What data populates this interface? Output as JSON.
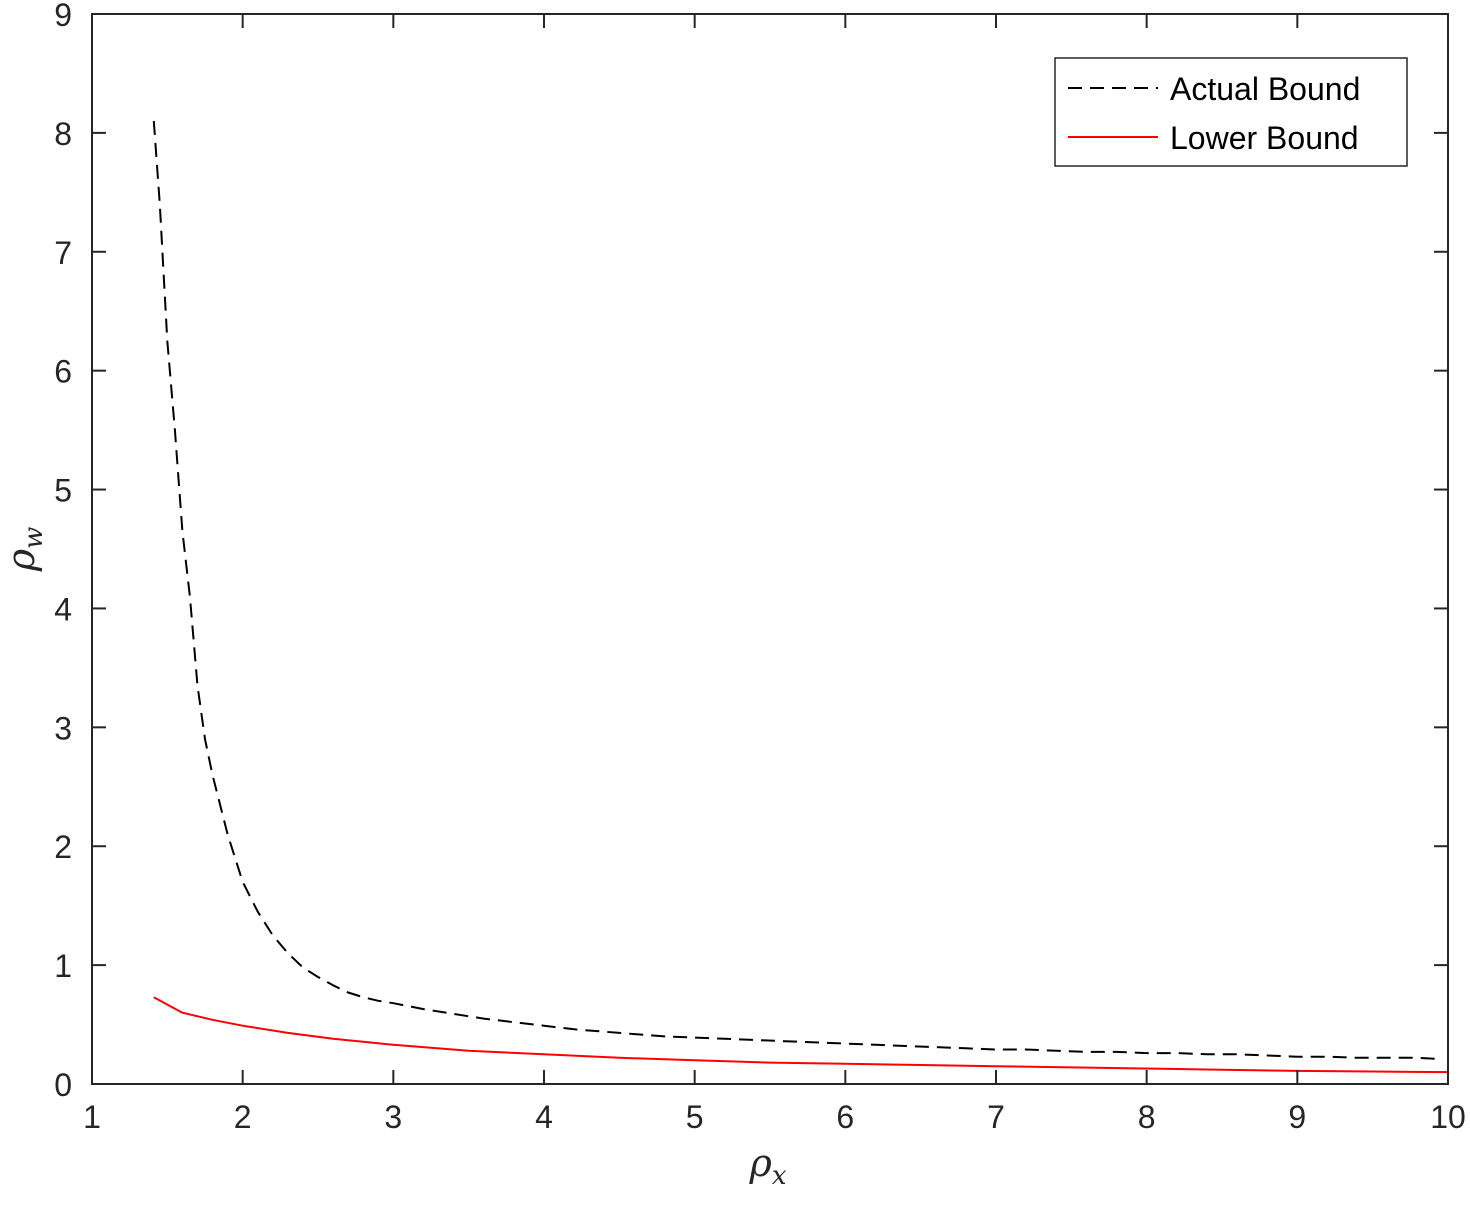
{
  "chart_data": {
    "type": "line",
    "title": "",
    "xlabel": {
      "base": "ρ",
      "sub": "x"
    },
    "ylabel": {
      "base": "ρ",
      "sub": "w"
    },
    "xlim": [
      1,
      10
    ],
    "ylim": [
      0,
      9
    ],
    "xticks": [
      "1",
      "2",
      "3",
      "4",
      "5",
      "6",
      "7",
      "8",
      "9",
      "10"
    ],
    "yticks": [
      "0",
      "1",
      "2",
      "3",
      "4",
      "5",
      "6",
      "7",
      "8",
      "9"
    ],
    "grid": false,
    "legend_position": "top-right",
    "series": [
      {
        "name": "Actual Bound",
        "color": "#000000",
        "style": "dashed",
        "x": [
          1.41,
          1.45,
          1.5,
          1.55,
          1.6,
          1.65,
          1.7,
          1.75,
          1.8,
          1.9,
          2.0,
          2.1,
          2.2,
          2.3,
          2.4,
          2.5,
          2.6,
          2.7,
          2.8,
          2.9,
          3.0,
          3.2,
          3.4,
          3.6,
          3.8,
          4.0,
          4.2,
          4.4,
          4.6,
          4.8,
          5.0,
          5.2,
          5.4,
          5.6,
          5.8,
          6.0,
          6.2,
          6.4,
          6.6,
          6.8,
          7.0,
          7.2,
          7.4,
          7.6,
          7.8,
          8.0,
          8.2,
          8.4,
          8.6,
          8.8,
          9.0,
          9.2,
          9.4,
          9.6,
          9.8,
          9.95
        ],
        "y": [
          8.1,
          7.4,
          6.25,
          5.5,
          4.65,
          4.1,
          3.35,
          2.9,
          2.6,
          2.1,
          1.7,
          1.45,
          1.25,
          1.1,
          0.98,
          0.9,
          0.83,
          0.77,
          0.73,
          0.7,
          0.68,
          0.63,
          0.59,
          0.55,
          0.52,
          0.49,
          0.46,
          0.44,
          0.42,
          0.4,
          0.39,
          0.38,
          0.37,
          0.36,
          0.35,
          0.34,
          0.33,
          0.32,
          0.31,
          0.3,
          0.29,
          0.29,
          0.28,
          0.27,
          0.27,
          0.26,
          0.26,
          0.25,
          0.25,
          0.24,
          0.23,
          0.23,
          0.22,
          0.22,
          0.22,
          0.21
        ]
      },
      {
        "name": "Lower Bound",
        "color": "#ff0000",
        "style": "solid",
        "x": [
          1.41,
          1.6,
          1.8,
          2.0,
          2.3,
          2.6,
          3.0,
          3.5,
          4.0,
          4.5,
          5.0,
          5.5,
          6.0,
          6.5,
          7.0,
          7.5,
          8.0,
          8.5,
          9.0,
          9.5,
          10.0
        ],
        "y": [
          0.73,
          0.6,
          0.54,
          0.49,
          0.43,
          0.38,
          0.33,
          0.28,
          0.25,
          0.22,
          0.2,
          0.18,
          0.17,
          0.16,
          0.15,
          0.14,
          0.13,
          0.12,
          0.11,
          0.105,
          0.1
        ]
      }
    ]
  }
}
